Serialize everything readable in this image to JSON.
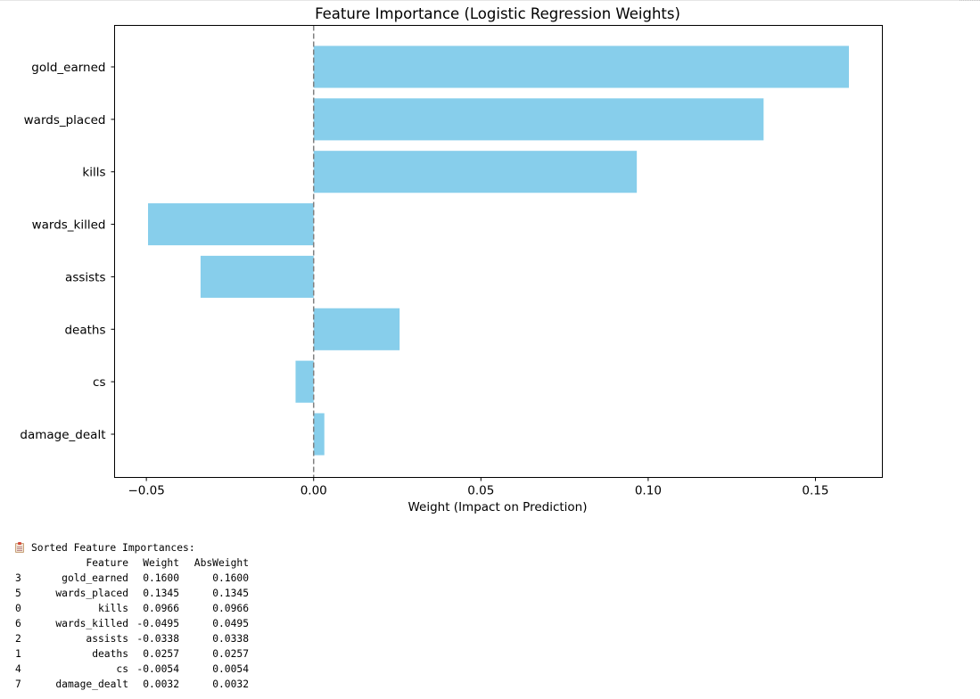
{
  "chart_data": {
    "type": "bar",
    "orientation": "horizontal",
    "title": "Feature Importance (Logistic Regression Weights)",
    "xlabel": "Weight (Impact on Prediction)",
    "ylabel": "",
    "categories": [
      "gold_earned",
      "wards_placed",
      "kills",
      "wards_killed",
      "assists",
      "deaths",
      "cs",
      "damage_dealt"
    ],
    "values": [
      0.16,
      0.1345,
      0.0966,
      -0.0495,
      -0.0338,
      0.0257,
      -0.0054,
      0.0032
    ],
    "xlim": [
      -0.0595,
      0.17
    ],
    "xticks": [
      -0.05,
      0.0,
      0.05,
      0.1,
      0.15
    ],
    "xtick_labels": [
      "−0.05",
      "0.00",
      "0.05",
      "0.10",
      "0.15"
    ],
    "reference_line": {
      "x": 0,
      "style": "dashed",
      "color": "#808080"
    },
    "bar_color": "#87CEEB",
    "grid": false
  },
  "output": {
    "heading_icon": "clipboard-icon",
    "heading": "Sorted Feature Importances:",
    "columns": [
      "",
      "Feature",
      "Weight",
      "AbsWeight"
    ],
    "rows": [
      [
        "3",
        "gold_earned",
        "0.1600",
        "0.1600"
      ],
      [
        "5",
        "wards_placed",
        "0.1345",
        "0.1345"
      ],
      [
        "0",
        "kills",
        "0.0966",
        "0.0966"
      ],
      [
        "6",
        "wards_killed",
        "-0.0495",
        "0.0495"
      ],
      [
        "2",
        "assists",
        "-0.0338",
        "0.0338"
      ],
      [
        "1",
        "deaths",
        "0.0257",
        "0.0257"
      ],
      [
        "4",
        "cs",
        "-0.0054",
        "0.0054"
      ],
      [
        "7",
        "damage_dealt",
        "0.0032",
        "0.0032"
      ]
    ]
  }
}
